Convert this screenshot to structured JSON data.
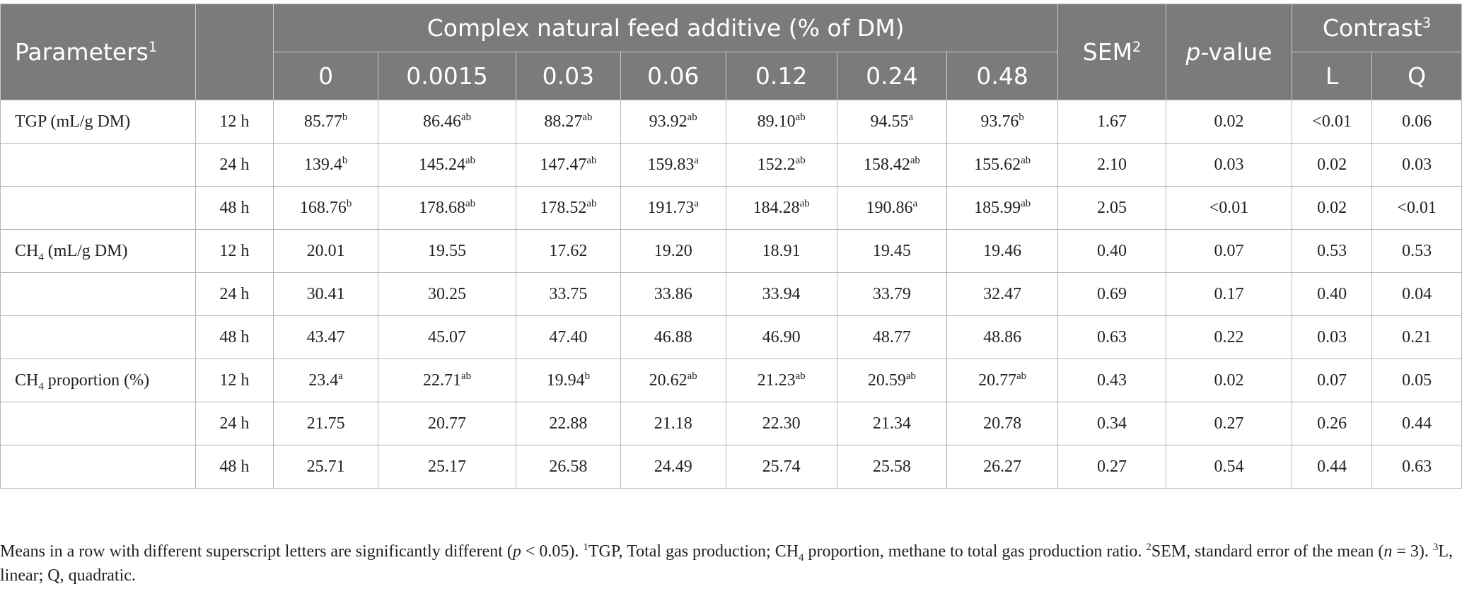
{
  "header": {
    "parameters_label": "Parameters",
    "parameters_sup": "1",
    "group_label": "Complex natural feed additive (% of DM)",
    "levels": [
      "0",
      "0.0015",
      "0.03",
      "0.06",
      "0.12",
      "0.24",
      "0.48"
    ],
    "sem_label": "SEM",
    "sem_sup": "2",
    "pvalue_italic": "p",
    "pvalue_rest": "-value",
    "contrast_label": "Contrast",
    "contrast_sup": "3",
    "linear_label": "L",
    "quadratic_label": "Q"
  },
  "rows": [
    {
      "param": [
        "TGP (mL/g DM)"
      ],
      "time": "12 h",
      "values": [
        [
          "85.77",
          "b"
        ],
        [
          "86.46",
          "ab"
        ],
        [
          "88.27",
          "ab"
        ],
        [
          "93.92",
          "ab"
        ],
        [
          "89.10",
          "ab"
        ],
        [
          "94.55",
          "a"
        ],
        [
          "93.76",
          "b"
        ]
      ],
      "sem": "1.67",
      "p": "0.02",
      "L": "<0.01",
      "Q": "0.06"
    },
    {
      "param": [],
      "time": "24 h",
      "values": [
        [
          "139.4",
          "b"
        ],
        [
          "145.24",
          "ab"
        ],
        [
          "147.47",
          "ab"
        ],
        [
          "159.83",
          "a"
        ],
        [
          "152.2",
          "ab"
        ],
        [
          "158.42",
          "ab"
        ],
        [
          "155.62",
          "ab"
        ]
      ],
      "sem": "2.10",
      "p": "0.03",
      "L": "0.02",
      "Q": "0.03"
    },
    {
      "param": [],
      "time": "48 h",
      "values": [
        [
          "168.76",
          "b"
        ],
        [
          "178.68",
          "ab"
        ],
        [
          "178.52",
          "ab"
        ],
        [
          "191.73",
          "a"
        ],
        [
          "184.28",
          "ab"
        ],
        [
          "190.86",
          "a"
        ],
        [
          "185.99",
          "ab"
        ]
      ],
      "sem": "2.05",
      "p": "<0.01",
      "L": "0.02",
      "Q": "<0.01"
    },
    {
      "param": [
        "CH",
        "4",
        " (mL/g DM)"
      ],
      "time": "12 h",
      "values": [
        [
          "20.01",
          ""
        ],
        [
          "19.55",
          ""
        ],
        [
          "17.62",
          ""
        ],
        [
          "19.20",
          ""
        ],
        [
          "18.91",
          ""
        ],
        [
          "19.45",
          ""
        ],
        [
          "19.46",
          ""
        ]
      ],
      "sem": "0.40",
      "p": "0.07",
      "L": "0.53",
      "Q": "0.53"
    },
    {
      "param": [],
      "time": "24 h",
      "values": [
        [
          "30.41",
          ""
        ],
        [
          "30.25",
          ""
        ],
        [
          "33.75",
          ""
        ],
        [
          "33.86",
          ""
        ],
        [
          "33.94",
          ""
        ],
        [
          "33.79",
          ""
        ],
        [
          "32.47",
          ""
        ]
      ],
      "sem": "0.69",
      "p": "0.17",
      "L": "0.40",
      "Q": "0.04"
    },
    {
      "param": [],
      "time": "48 h",
      "values": [
        [
          "43.47",
          ""
        ],
        [
          "45.07",
          ""
        ],
        [
          "47.40",
          ""
        ],
        [
          "46.88",
          ""
        ],
        [
          "46.90",
          ""
        ],
        [
          "48.77",
          ""
        ],
        [
          "48.86",
          ""
        ]
      ],
      "sem": "0.63",
      "p": "0.22",
      "L": "0.03",
      "Q": "0.21"
    },
    {
      "param": [
        "CH",
        "4",
        " proportion (%)"
      ],
      "time": "12 h",
      "values": [
        [
          "23.4",
          "a"
        ],
        [
          "22.71",
          "ab"
        ],
        [
          "19.94",
          "b"
        ],
        [
          "20.62",
          "ab"
        ],
        [
          "21.23",
          "ab"
        ],
        [
          "20.59",
          "ab"
        ],
        [
          "20.77",
          "ab"
        ]
      ],
      "sem": "0.43",
      "p": "0.02",
      "L": "0.07",
      "Q": "0.05"
    },
    {
      "param": [],
      "time": "24 h",
      "values": [
        [
          "21.75",
          ""
        ],
        [
          "20.77",
          ""
        ],
        [
          "22.88",
          ""
        ],
        [
          "21.18",
          ""
        ],
        [
          "22.30",
          ""
        ],
        [
          "21.34",
          ""
        ],
        [
          "20.78",
          ""
        ]
      ],
      "sem": "0.34",
      "p": "0.27",
      "L": "0.26",
      "Q": "0.44"
    },
    {
      "param": [],
      "time": "48 h",
      "values": [
        [
          "25.71",
          ""
        ],
        [
          "25.17",
          ""
        ],
        [
          "26.58",
          ""
        ],
        [
          "24.49",
          ""
        ],
        [
          "25.74",
          ""
        ],
        [
          "25.58",
          ""
        ],
        [
          "26.27",
          ""
        ]
      ],
      "sem": "0.27",
      "p": "0.54",
      "L": "0.44",
      "Q": "0.63"
    }
  ],
  "footnote": {
    "p1": "Means in a row with different superscript letters are significantly different (",
    "p_italic": "p",
    "p2": " < 0.05). ",
    "s1": "1",
    "p3": "TGP, Total gas production; CH",
    "sub4": "4",
    "p4": " proportion, methane to total gas production ratio. ",
    "s2": "2",
    "p5": "SEM, standard error of the mean (",
    "n_italic": "n",
    "p6": " = 3). ",
    "s3": "3",
    "p7": "L, linear; Q, quadratic."
  }
}
